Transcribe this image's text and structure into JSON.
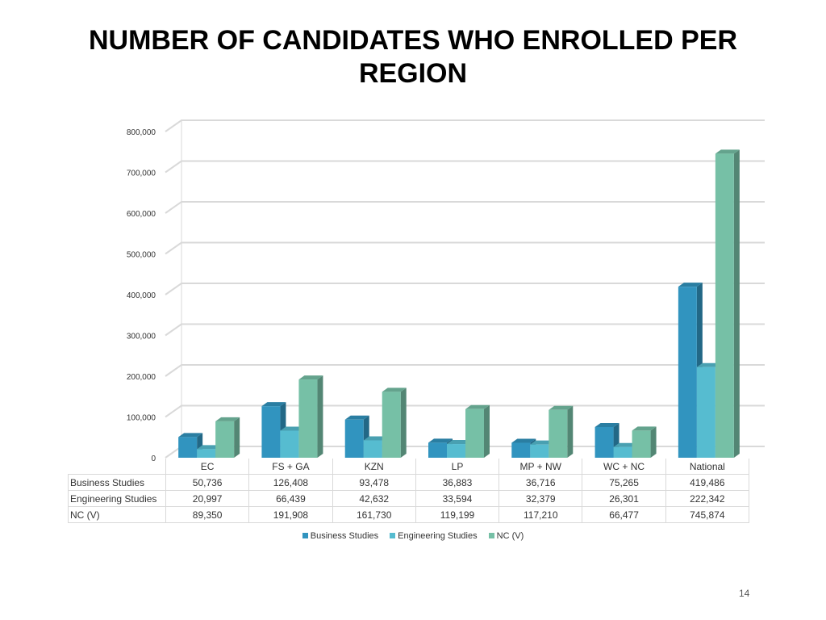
{
  "title": "NUMBER OF CANDIDATES WHO ENROLLED PER REGION",
  "page_number": "14",
  "colors": {
    "business": "#3194bf",
    "engineering": "#56bcd0",
    "ncv": "#76c0a6",
    "grid": "#d9d9d9"
  },
  "chart_data": {
    "type": "bar",
    "title": "",
    "xlabel": "",
    "ylabel": "",
    "ylim": [
      0,
      800000
    ],
    "y_tick_labels": [
      "0",
      "100,000",
      "200,000",
      "300,000",
      "400,000",
      "500,000",
      "600,000",
      "700,000",
      "800,000"
    ],
    "grid": true,
    "legend": "bottom",
    "categories": [
      "EC",
      "FS + GA",
      "KZN",
      "LP",
      "MP + NW",
      "WC + NC",
      "National"
    ],
    "series": [
      {
        "name": "Business Studies",
        "values": [
          50736,
          126408,
          93478,
          36883,
          36716,
          75265,
          419486
        ],
        "labels": [
          "50,736",
          "126,408",
          "93,478",
          "36,883",
          "36,716",
          "75,265",
          "419,486"
        ]
      },
      {
        "name": "Engineering Studies",
        "values": [
          20997,
          66439,
          42632,
          33594,
          32379,
          26301,
          222342
        ],
        "labels": [
          "20,997",
          "66,439",
          "42,632",
          "33,594",
          "32,379",
          "26,301",
          "222,342"
        ]
      },
      {
        "name": "NC (V)",
        "values": [
          89350,
          191908,
          161730,
          119199,
          117210,
          66477,
          745874
        ],
        "labels": [
          "89,350",
          "191,908",
          "161,730",
          "119,199",
          "117,210",
          "66,477",
          "745,874"
        ]
      }
    ]
  }
}
